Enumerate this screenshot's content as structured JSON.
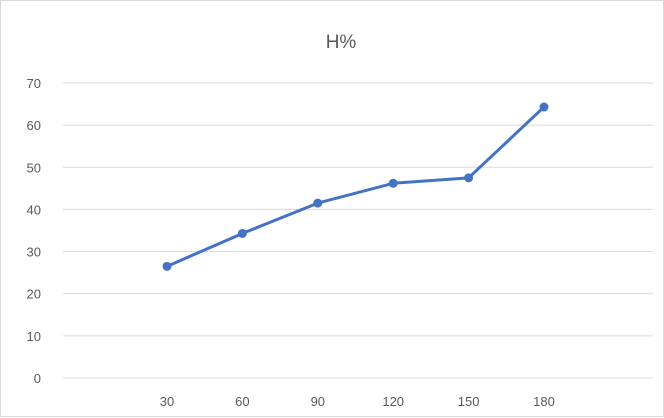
{
  "chart_data": {
    "type": "line",
    "title": "H%",
    "xlabel": "",
    "ylabel": "",
    "categories": [
      "30",
      "60",
      "90",
      "120",
      "150",
      "180"
    ],
    "series": [
      {
        "values": [
          26.5,
          34.3,
          41.5,
          46.2,
          47.5,
          64.3
        ]
      }
    ],
    "ylim": [
      0,
      70
    ],
    "yticks": [
      "0",
      "10",
      "20",
      "30",
      "40",
      "50",
      "60",
      "70"
    ],
    "grid": "horizontal",
    "legend": "none",
    "colors": {
      "line": "#4472c4",
      "grid": "#d9d9d9",
      "text": "#595959",
      "frame": "#d9d9d9"
    }
  }
}
